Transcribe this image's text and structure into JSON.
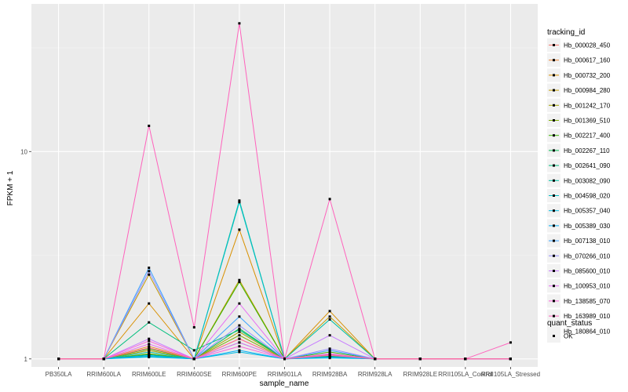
{
  "chart_data": {
    "type": "line",
    "xlabel": "sample_name",
    "ylabel": "FPKM + 1",
    "y_scale": "log10",
    "ylim": [
      0.915,
      51.5
    ],
    "grid": true,
    "panel_background": "#ebebeb",
    "legend_position": "right",
    "categories": [
      "PB350LA",
      "RRIM600LA",
      "RRIM600LE",
      "RRIM600SE",
      "RRIM600PE",
      "RRIM901LA",
      "RRIM928BA",
      "RRIM928LA",
      "RRIM928LE",
      "RRII105LA_Control",
      "RRII105LA_Stressed"
    ],
    "y_ticks": [
      1,
      10
    ],
    "y_tick_labels": [
      "1",
      "10"
    ],
    "legend_title": "tracking_id",
    "series": [
      {
        "name": "Hb_000028_450",
        "color": "#F8766D",
        "values": [
          1,
          1,
          1.1,
          1,
          1.25,
          1,
          1.05,
          1,
          1,
          1,
          1
        ]
      },
      {
        "name": "Hb_000617_160",
        "color": "#EA8331",
        "values": [
          1,
          1,
          1.15,
          1,
          1.2,
          1,
          1.03,
          1,
          1,
          1,
          1
        ]
      },
      {
        "name": "Hb_000732_200",
        "color": "#D89000",
        "values": [
          1,
          1,
          1.85,
          1,
          4.2,
          1,
          1.7,
          1,
          1,
          1,
          1
        ]
      },
      {
        "name": "Hb_000984_280",
        "color": "#C09B00",
        "values": [
          1,
          1,
          2.55,
          1,
          2.4,
          1,
          1.6,
          1,
          1,
          1,
          1
        ]
      },
      {
        "name": "Hb_001242_170",
        "color": "#A3A500",
        "values": [
          1,
          1,
          1.1,
          1,
          1.35,
          1,
          1.04,
          1,
          1,
          1,
          1
        ]
      },
      {
        "name": "Hb_001369_510",
        "color": "#7CAE00",
        "values": [
          1,
          1,
          1.06,
          1,
          1.3,
          1,
          1.02,
          1,
          1,
          1,
          1
        ]
      },
      {
        "name": "Hb_002217_400",
        "color": "#39B600",
        "values": [
          1,
          1,
          1.12,
          1,
          2.35,
          1,
          1.08,
          1,
          1,
          1,
          1
        ]
      },
      {
        "name": "Hb_002267_110",
        "color": "#00BB4E",
        "values": [
          1,
          1,
          1.05,
          1,
          1.4,
          1,
          1.03,
          1,
          1,
          1,
          1
        ]
      },
      {
        "name": "Hb_002641_090",
        "color": "#00BF7D",
        "values": [
          1,
          1,
          1.5,
          1.1,
          1.38,
          1,
          1.05,
          1,
          1,
          1,
          1
        ]
      },
      {
        "name": "Hb_003082_090",
        "color": "#00C1A3",
        "values": [
          1,
          1,
          1.08,
          1,
          5.8,
          1,
          1.55,
          1,
          1,
          1,
          1
        ]
      },
      {
        "name": "Hb_004598_020",
        "color": "#00BFC4",
        "values": [
          1,
          1,
          1.03,
          1,
          5.7,
          1,
          1.02,
          1,
          1,
          1,
          1
        ]
      },
      {
        "name": "Hb_005357_040",
        "color": "#00BAE0",
        "values": [
          1,
          1,
          1.02,
          1,
          1.08,
          1,
          1.01,
          1,
          1,
          1,
          1
        ]
      },
      {
        "name": "Hb_005389_030",
        "color": "#00B0F6",
        "values": [
          1,
          1,
          1.04,
          1,
          1.1,
          1,
          1.02,
          1,
          1,
          1,
          1
        ]
      },
      {
        "name": "Hb_007138_010",
        "color": "#35A2FF",
        "values": [
          1,
          1,
          2.75,
          1,
          1.6,
          1,
          1.1,
          1,
          1,
          1,
          1
        ]
      },
      {
        "name": "Hb_070266_010",
        "color": "#9590FF",
        "values": [
          1,
          1,
          2.65,
          1,
          1.45,
          1,
          1.12,
          1,
          1,
          1,
          1
        ]
      },
      {
        "name": "Hb_085600_010",
        "color": "#C77CFF",
        "values": [
          1,
          1,
          1.25,
          1,
          1.2,
          1,
          1.3,
          1,
          1,
          1,
          1
        ]
      },
      {
        "name": "Hb_100953_010",
        "color": "#E76BF3",
        "values": [
          1,
          1,
          1.18,
          1,
          1.85,
          1,
          1.06,
          1,
          1,
          1,
          1
        ]
      },
      {
        "name": "Hb_138585_070",
        "color": "#FA62DB",
        "values": [
          1,
          1,
          1.22,
          1,
          1.15,
          1,
          1.04,
          1,
          1,
          1,
          1
        ]
      },
      {
        "name": "Hb_163989_010",
        "color": "#FF62BC",
        "values": [
          1,
          1,
          13.3,
          1.42,
          41.5,
          1,
          5.9,
          1,
          1,
          1,
          1.2
        ]
      },
      {
        "name": "Hb_180864_010",
        "color": "#FF6C91",
        "values": [
          1,
          1,
          1.13,
          1,
          1.25,
          1,
          1.05,
          1,
          1,
          1,
          1
        ]
      }
    ],
    "shape_legend": {
      "title": "quant_status",
      "items": [
        {
          "label": "OK",
          "shape": "square",
          "color": "#000000"
        }
      ]
    }
  }
}
